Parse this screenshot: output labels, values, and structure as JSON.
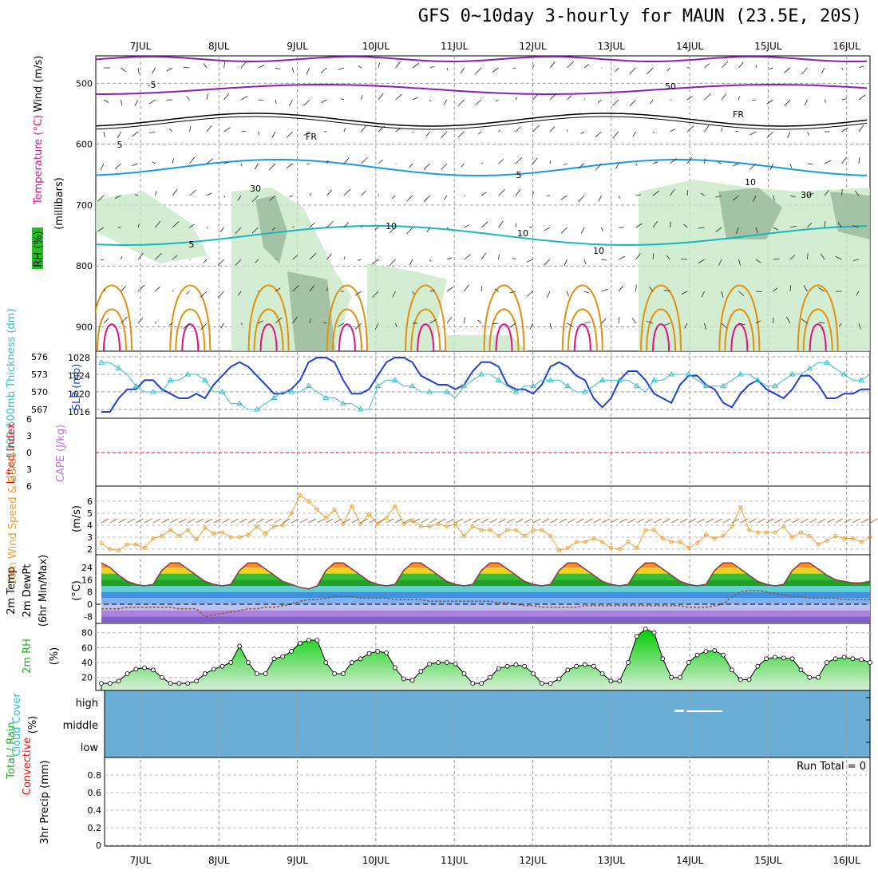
{
  "title": "GFS 0~10day 3-hourly for MAUN (23.5E, 20S)",
  "dates": [
    "7JUL",
    "8JUL",
    "9JUL",
    "10JUL",
    "11JUL",
    "12JUL",
    "13JUL",
    "14JUL",
    "15JUL",
    "16JUL"
  ],
  "colors": {
    "temp_purple": "#8a1fb4",
    "temp_black": "#000000",
    "temp_blue": "#1a9ae0",
    "temp_teal": "#18b8c0",
    "temp_orange": "#e09010",
    "temp_red": "#e01080",
    "rh_green": "#c8e8c8",
    "slp": "#2040d0",
    "thickness": "#30c0c8",
    "wind_speed": "#f0a030",
    "barb": "#8a6a3a",
    "rh2m": "#20b020",
    "cloud": "#6aaed6",
    "lifted": "#ff0000",
    "cape": "#c070e0"
  },
  "chart_data": [
    {
      "type": "contour",
      "panel": "upper-air",
      "ylabel": "Wind (m/s)",
      "ylabel2": "Temperature (°C)",
      "ylabel3": "(millibars)",
      "ylabel4": "RH (%)",
      "yticks": [
        500,
        600,
        700,
        800,
        900
      ],
      "contour_labels": [
        "5",
        "-5",
        "FR",
        "FR",
        "5",
        "5",
        "10",
        "10",
        "10",
        "30",
        "10",
        "30",
        "50"
      ]
    },
    {
      "type": "line",
      "panel": "slp-thickness",
      "ylabel_left": "1000-500mb Thickness (dm)",
      "ylabel_right": "SLP (mb)",
      "yticks_left": [
        567,
        570,
        573,
        576
      ],
      "yticks_right": [
        1016,
        1020,
        1024,
        1028
      ],
      "series": [
        {
          "name": "SLP (mb)",
          "values": [
            1016,
            1016,
            1019,
            1021,
            1021,
            1023,
            1023,
            1021,
            1020,
            1019,
            1019,
            1020,
            1019,
            1022,
            1024,
            1026,
            1027,
            1026,
            1024,
            1022,
            1020,
            1020,
            1021,
            1023,
            1027,
            1028,
            1028,
            1027,
            1023,
            1020,
            1020,
            1021,
            1024,
            1027,
            1028,
            1028,
            1027,
            1024,
            1023,
            1022,
            1022,
            1021,
            1022,
            1025,
            1027,
            1027,
            1026,
            1022,
            1021,
            1021,
            1020,
            1022,
            1026,
            1027,
            1026,
            1024,
            1023,
            1019,
            1017,
            1019,
            1023,
            1025,
            1025,
            1023,
            1020,
            1019,
            1018,
            1022,
            1024,
            1024,
            1022,
            1021,
            1018,
            1017,
            1020,
            1022,
            1023,
            1021,
            1020,
            1019,
            1021,
            1024,
            1024,
            1022,
            1019,
            1019,
            1020,
            1020,
            1021,
            1021
          ]
        },
        {
          "name": "Thickness (dm)",
          "values": [
            575,
            575,
            574,
            573,
            571,
            570,
            570,
            570,
            572,
            572,
            573,
            573,
            572,
            570,
            570,
            568,
            568,
            567,
            567,
            568,
            569,
            570,
            570,
            570,
            571,
            570,
            569,
            569,
            568,
            568,
            567,
            567,
            571,
            572,
            572,
            571,
            571,
            570,
            570,
            570,
            570,
            569,
            571,
            572,
            573,
            573,
            572,
            571,
            570,
            571,
            571,
            572,
            572,
            572,
            571,
            570,
            570,
            571,
            572,
            572,
            572,
            572,
            571,
            570,
            572,
            572,
            573,
            573,
            573,
            572,
            571,
            571,
            571,
            572,
            573,
            573,
            572,
            571,
            571,
            572,
            573,
            573,
            574,
            575,
            575,
            574,
            573,
            572,
            572,
            573
          ]
        }
      ]
    },
    {
      "type": "line",
      "panel": "lifted-cape",
      "ylabel": "Lifted Index",
      "ylabel_right": "CAPE (J/kg)",
      "yticks": [
        6,
        3,
        0,
        -3,
        -6
      ]
    },
    {
      "type": "line",
      "panel": "wind10m",
      "ylabel": "10m Wind Speed & Barbs",
      "yunit": "(m/s)",
      "yticks": [
        2,
        3,
        4,
        5,
        6
      ],
      "ylim": [
        1.5,
        7
      ],
      "series": [
        {
          "name": "Speed",
          "values": [
            2.5,
            2.0,
            1.9,
            2.4,
            2.4,
            2.1,
            2.9,
            3.1,
            3.6,
            3.1,
            3.6,
            2.8,
            3.8,
            3.3,
            3.4,
            3.0,
            3.0,
            3.2,
            3.9,
            3.3,
            3.9,
            4.0,
            5.0,
            6.5,
            6.0,
            5.3,
            4.6,
            5.3,
            4.1,
            5.6,
            4.1,
            4.9,
            4.1,
            4.6,
            5.6,
            4.1,
            4.4,
            3.9,
            3.9,
            4.1,
            3.9,
            4.1,
            3.1,
            3.9,
            3.6,
            3.6,
            3.1,
            3.6,
            3.6,
            3.1,
            3.6,
            3.6,
            3.1,
            1.9,
            2.1,
            2.6,
            2.6,
            2.9,
            2.6,
            2.1,
            2.0,
            2.6,
            2.1,
            3.6,
            3.6,
            2.9,
            2.6,
            2.6,
            2.1,
            2.5,
            3.2,
            2.9,
            3.1,
            3.9,
            5.5,
            3.6,
            3.4,
            3.4,
            3.4,
            3.9,
            3.0,
            3.4,
            3.1,
            2.4,
            2.7,
            3.1,
            2.9,
            2.9,
            2.6,
            3.0
          ]
        }
      ]
    },
    {
      "type": "area",
      "panel": "temp2m",
      "ylabel": "2m Temp",
      "ylabel2": "2m DewPt",
      "ylabel3": "(6hr Min/Max)",
      "yunit": "(°C)",
      "yticks": [
        -8,
        0,
        8,
        16,
        24
      ],
      "series": [
        {
          "name": "2m Temp",
          "values": [
            27,
            24,
            19,
            15,
            13,
            12,
            13,
            22,
            27,
            27,
            23,
            19,
            15,
            13,
            12,
            13,
            22,
            27,
            27,
            23,
            19,
            15,
            13,
            11,
            10,
            12,
            22,
            27,
            27,
            23,
            19,
            15,
            13,
            12,
            13,
            22,
            27,
            27,
            23,
            19,
            15,
            13,
            12,
            13,
            22,
            27,
            27,
            23,
            19,
            15,
            13,
            12,
            13,
            22,
            27,
            27,
            23,
            19,
            15,
            13,
            12,
            13,
            22,
            27,
            27,
            23,
            19,
            15,
            13,
            12,
            13,
            22,
            27,
            27,
            23,
            19,
            15,
            13,
            12,
            13,
            22,
            27,
            27,
            23,
            19,
            16,
            15,
            14,
            14,
            15
          ]
        },
        {
          "name": "2m DewPt",
          "values": [
            -3,
            -3,
            -3,
            -2,
            -2,
            -2,
            -2,
            -2,
            -2,
            -3,
            -3,
            -3,
            -8,
            -7,
            -6,
            -5,
            -4,
            -3,
            -3,
            -2,
            -2,
            -1,
            0,
            2,
            3,
            3,
            4,
            5,
            5,
            5,
            4,
            4,
            4,
            4,
            3,
            3,
            3,
            3,
            2,
            2,
            2,
            2,
            2,
            2,
            2,
            2,
            1,
            1,
            0,
            -1,
            -1,
            -2,
            -2,
            -2,
            -2,
            -2,
            -1,
            -1,
            -1,
            -1,
            -1,
            -1,
            -1,
            -1,
            -1,
            -1,
            -1,
            -1,
            -2,
            -2,
            -2,
            -1,
            0,
            5,
            8,
            9,
            9,
            8,
            7,
            6,
            5,
            5,
            4,
            4,
            4,
            4,
            3,
            3,
            3,
            3
          ]
        }
      ]
    },
    {
      "type": "area",
      "panel": "rh2m",
      "ylabel": "2m RH",
      "yunit": "(%)",
      "yticks": [
        20,
        40,
        60,
        80
      ],
      "series": [
        {
          "name": "2m RH",
          "values": [
            12,
            12,
            15,
            25,
            31,
            33,
            30,
            20,
            12,
            12,
            12,
            15,
            25,
            31,
            35,
            40,
            62,
            40,
            25,
            25,
            45,
            48,
            55,
            66,
            70,
            70,
            40,
            25,
            25,
            40,
            45,
            52,
            55,
            53,
            33,
            18,
            16,
            28,
            38,
            40,
            40,
            38,
            25,
            12,
            12,
            20,
            32,
            35,
            37,
            35,
            25,
            12,
            12,
            18,
            30,
            35,
            37,
            35,
            25,
            15,
            15,
            40,
            75,
            85,
            80,
            45,
            20,
            20,
            40,
            50,
            55,
            56,
            50,
            30,
            17,
            17,
            35,
            45,
            47,
            46,
            45,
            30,
            20,
            20,
            40,
            45,
            47,
            45,
            44,
            40
          ]
        }
      ]
    },
    {
      "type": "bar",
      "panel": "cloud",
      "ylabel": "Cloud Cover",
      "yunit": "(%)",
      "yticks": [
        "high",
        "middle",
        "low"
      ]
    },
    {
      "type": "bar",
      "panel": "precip",
      "ylabel": "3hr Precip (mm)",
      "ylabel_left": "Total / Rain",
      "ylabel_left2": "Convective",
      "run_total": "Run Total = 0",
      "yticks": [
        0,
        0.2,
        0.4,
        0.6,
        0.8
      ],
      "ylim": [
        0,
        0.95
      ]
    }
  ]
}
